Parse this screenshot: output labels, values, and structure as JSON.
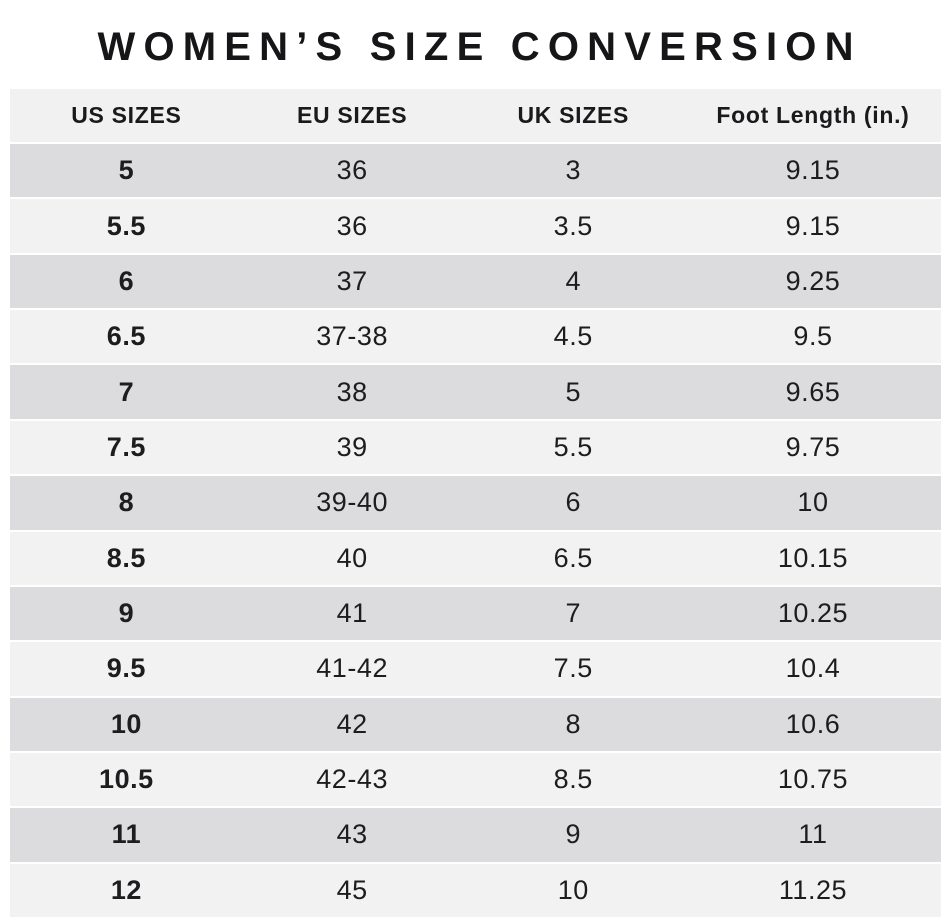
{
  "title": "WOMEN’S SIZE CONVERSION",
  "table": {
    "columns": [
      "US SIZES",
      "EU SIZES",
      "UK SIZES",
      "Foot Length (in.)"
    ],
    "rows": [
      [
        "5",
        "36",
        "3",
        "9.15"
      ],
      [
        "5.5",
        "36",
        "3.5",
        "9.15"
      ],
      [
        "6",
        "37",
        "4",
        "9.25"
      ],
      [
        "6.5",
        "37-38",
        "4.5",
        "9.5"
      ],
      [
        "7",
        "38",
        "5",
        "9.65"
      ],
      [
        "7.5",
        "39",
        "5.5",
        "9.75"
      ],
      [
        "8",
        "39-40",
        "6",
        "10"
      ],
      [
        "8.5",
        "40",
        "6.5",
        "10.15"
      ],
      [
        "9",
        "41",
        "7",
        "10.25"
      ],
      [
        "9.5",
        "41-42",
        "7.5",
        "10.4"
      ],
      [
        "10",
        "42",
        "8",
        "10.6"
      ],
      [
        "10.5",
        "42-43",
        "8.5",
        "10.75"
      ],
      [
        "11",
        "43",
        "9",
        "11"
      ],
      [
        "12",
        "45",
        "10",
        "11.25"
      ]
    ]
  },
  "chart_data": {
    "type": "table",
    "title": "WOMEN’S SIZE CONVERSION",
    "columns": [
      "US SIZES",
      "EU SIZES",
      "UK SIZES",
      "Foot Length (in.)"
    ],
    "rows": [
      {
        "us": "5",
        "eu": "36",
        "uk": "3",
        "foot_length_in": "9.15"
      },
      {
        "us": "5.5",
        "eu": "36",
        "uk": "3.5",
        "foot_length_in": "9.15"
      },
      {
        "us": "6",
        "eu": "37",
        "uk": "4",
        "foot_length_in": "9.25"
      },
      {
        "us": "6.5",
        "eu": "37-38",
        "uk": "4.5",
        "foot_length_in": "9.5"
      },
      {
        "us": "7",
        "eu": "38",
        "uk": "5",
        "foot_length_in": "9.65"
      },
      {
        "us": "7.5",
        "eu": "39",
        "uk": "5.5",
        "foot_length_in": "9.75"
      },
      {
        "us": "8",
        "eu": "39-40",
        "uk": "6",
        "foot_length_in": "10"
      },
      {
        "us": "8.5",
        "eu": "40",
        "uk": "6.5",
        "foot_length_in": "10.15"
      },
      {
        "us": "9",
        "eu": "41",
        "uk": "7",
        "foot_length_in": "10.25"
      },
      {
        "us": "9.5",
        "eu": "41-42",
        "uk": "7.5",
        "foot_length_in": "10.4"
      },
      {
        "us": "10",
        "eu": "42",
        "uk": "8",
        "foot_length_in": "10.6"
      },
      {
        "us": "10.5",
        "eu": "42-43",
        "uk": "8.5",
        "foot_length_in": "10.75"
      },
      {
        "us": "11",
        "eu": "43",
        "uk": "9",
        "foot_length_in": "11"
      },
      {
        "us": "12",
        "eu": "45",
        "uk": "10",
        "foot_length_in": "11.25"
      }
    ]
  },
  "colors": {
    "background": "#ffffff",
    "header_row_bg": "#f1f1f2",
    "row_dark": "#dcdcde",
    "row_light": "#f2f2f3",
    "text": "#1d1d1f",
    "title_text": "#161618"
  }
}
